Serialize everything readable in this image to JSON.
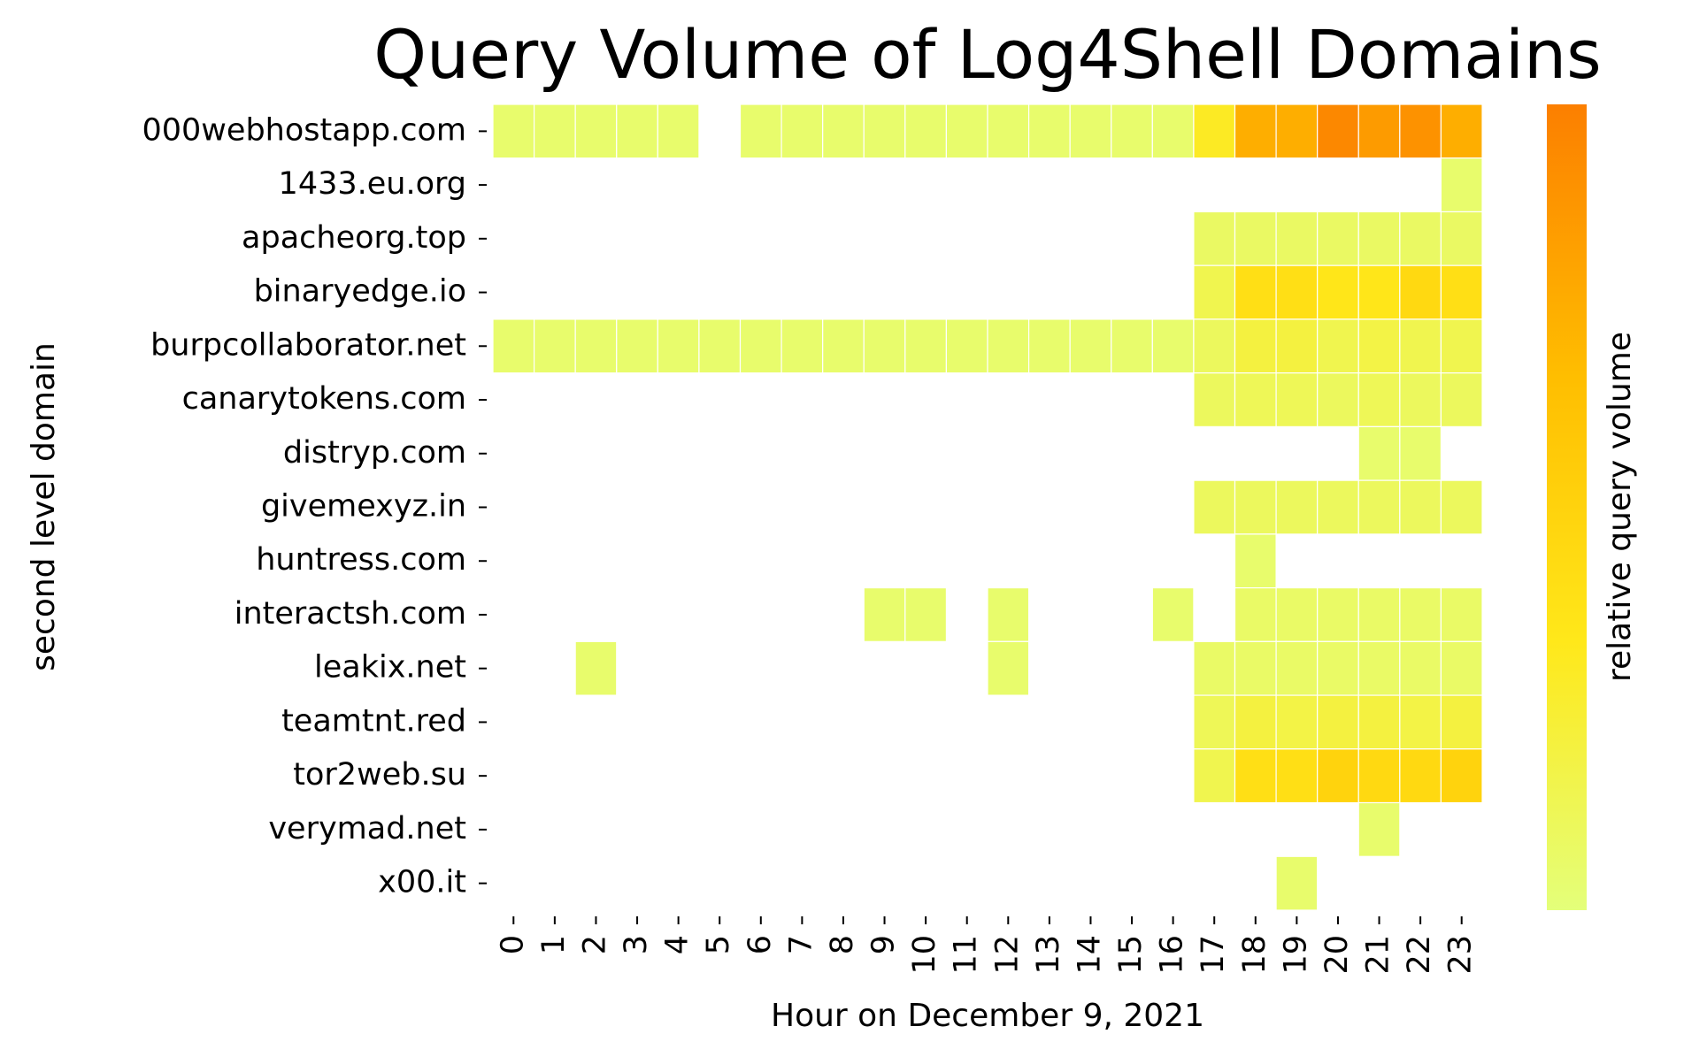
{
  "chart_data": {
    "type": "heatmap",
    "title": "Query Volume of Log4Shell Domains",
    "xlabel": "Hour on December 9, 2021",
    "ylabel": "second level domain",
    "colorbar_label": "relative query volume",
    "clim": [
      0,
      1
    ],
    "colormap": [
      "#e4ff7a",
      "#ffe81a",
      "#ffbd00",
      "#fc7f00"
    ],
    "x": [
      0,
      1,
      2,
      3,
      4,
      5,
      6,
      7,
      8,
      9,
      10,
      11,
      12,
      13,
      14,
      15,
      16,
      17,
      18,
      19,
      20,
      21,
      22,
      23
    ],
    "categories": [
      "000webhostapp.com",
      "1433.eu.org",
      "apacheorg.top",
      "binaryedge.io",
      "burpcollaborator.net",
      "canarytokens.com",
      "distryp.com",
      "givemexyz.in",
      "huntress.com",
      "interactsh.com",
      "leakix.net",
      "teamtnt.red",
      "tor2web.su",
      "verymad.net",
      "x00.it"
    ],
    "values": [
      [
        0.05,
        0.05,
        0.05,
        0.05,
        0.05,
        null,
        0.05,
        0.05,
        0.05,
        0.05,
        0.05,
        0.05,
        0.05,
        0.05,
        0.05,
        0.05,
        0.05,
        0.3,
        0.75,
        0.75,
        0.95,
        0.85,
        0.9,
        0.75
      ],
      [
        null,
        null,
        null,
        null,
        null,
        null,
        null,
        null,
        null,
        null,
        null,
        null,
        null,
        null,
        null,
        null,
        null,
        null,
        null,
        null,
        null,
        null,
        null,
        0.05
      ],
      [
        null,
        null,
        null,
        null,
        null,
        null,
        null,
        null,
        null,
        null,
        null,
        null,
        null,
        null,
        null,
        null,
        null,
        0.08,
        0.08,
        0.08,
        0.08,
        0.08,
        0.08,
        0.08
      ],
      [
        null,
        null,
        null,
        null,
        null,
        null,
        null,
        null,
        null,
        null,
        null,
        null,
        null,
        null,
        null,
        null,
        null,
        0.15,
        0.4,
        0.4,
        0.35,
        0.35,
        0.45,
        0.4
      ],
      [
        0.05,
        0.05,
        0.05,
        0.05,
        0.05,
        0.05,
        0.05,
        0.05,
        0.05,
        0.05,
        0.05,
        0.05,
        0.05,
        0.05,
        0.05,
        0.05,
        0.05,
        0.1,
        0.2,
        0.2,
        0.15,
        0.18,
        0.15,
        0.15
      ],
      [
        null,
        null,
        null,
        null,
        null,
        null,
        null,
        null,
        null,
        null,
        null,
        null,
        null,
        null,
        null,
        null,
        null,
        0.1,
        0.12,
        0.12,
        0.1,
        0.12,
        0.1,
        0.1
      ],
      [
        null,
        null,
        null,
        null,
        null,
        null,
        null,
        null,
        null,
        null,
        null,
        null,
        null,
        null,
        null,
        null,
        null,
        null,
        null,
        null,
        null,
        0.05,
        0.05,
        null
      ],
      [
        null,
        null,
        null,
        null,
        null,
        null,
        null,
        null,
        null,
        null,
        null,
        null,
        null,
        null,
        null,
        null,
        null,
        0.1,
        0.1,
        0.1,
        0.1,
        0.1,
        0.1,
        0.1
      ],
      [
        null,
        null,
        null,
        null,
        null,
        null,
        null,
        null,
        null,
        null,
        null,
        null,
        null,
        null,
        null,
        null,
        null,
        null,
        0.05,
        null,
        null,
        null,
        null,
        null
      ],
      [
        null,
        null,
        null,
        null,
        null,
        null,
        null,
        null,
        null,
        0.05,
        0.05,
        null,
        0.05,
        null,
        null,
        null,
        0.05,
        null,
        0.07,
        0.07,
        0.07,
        0.07,
        0.07,
        0.07
      ],
      [
        null,
        null,
        0.05,
        null,
        null,
        null,
        null,
        null,
        null,
        null,
        null,
        null,
        0.05,
        null,
        null,
        null,
        null,
        0.07,
        0.07,
        0.07,
        0.07,
        0.07,
        0.07,
        0.07
      ],
      [
        null,
        null,
        null,
        null,
        null,
        null,
        null,
        null,
        null,
        null,
        null,
        null,
        null,
        null,
        null,
        null,
        null,
        0.12,
        0.2,
        0.18,
        0.2,
        0.2,
        0.18,
        0.2
      ],
      [
        null,
        null,
        null,
        null,
        null,
        null,
        null,
        null,
        null,
        null,
        null,
        null,
        null,
        null,
        null,
        null,
        null,
        0.15,
        0.4,
        0.4,
        0.5,
        0.45,
        0.45,
        0.5
      ],
      [
        null,
        null,
        null,
        null,
        null,
        null,
        null,
        null,
        null,
        null,
        null,
        null,
        null,
        null,
        null,
        null,
        null,
        null,
        null,
        null,
        null,
        0.05,
        null,
        null
      ],
      [
        null,
        null,
        null,
        null,
        null,
        null,
        null,
        null,
        null,
        null,
        null,
        null,
        null,
        null,
        null,
        null,
        null,
        null,
        null,
        0.05,
        null,
        null,
        null,
        null
      ]
    ]
  }
}
